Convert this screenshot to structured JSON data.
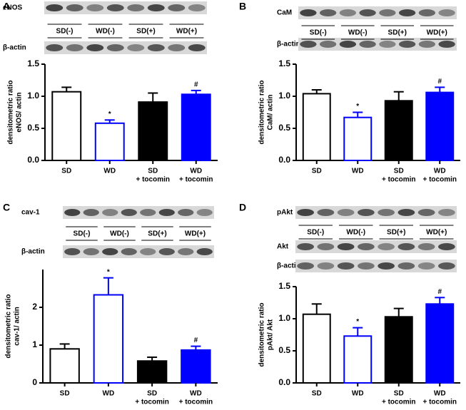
{
  "chart_data": [
    {
      "type": "bar",
      "panel": "A",
      "blot_rows": [
        "eNOS",
        "β-actin"
      ],
      "groups": [
        "SD(-)",
        "WD(-)",
        "SD(+)",
        "WD(+)"
      ],
      "ylabel": [
        "densitometric ratio",
        "eNOS/ actin"
      ],
      "categories": [
        "SD",
        "WD",
        "SD",
        "WD"
      ],
      "subcategories": [
        null,
        null,
        "+ tocomin",
        "+ tocomin"
      ],
      "values": [
        1.07,
        0.58,
        0.91,
        1.03
      ],
      "errors": [
        0.07,
        0.05,
        0.14,
        0.06
      ],
      "annotations": [
        null,
        "*",
        null,
        "#"
      ],
      "fills": [
        "#ffffff",
        "#ffffff",
        "#000000",
        "#0000ff"
      ],
      "edges": [
        "#000000",
        "#0000ff",
        "#000000",
        "#0000ff"
      ],
      "ylim": [
        0,
        1.5
      ],
      "yticks": [
        {
          "value": 0,
          "label": "0.0"
        },
        {
          "value": 0.5,
          "label": "0.5"
        },
        {
          "value": 1,
          "label": "1.0"
        },
        {
          "value": 1.5,
          "label": "1.5"
        }
      ]
    },
    {
      "type": "bar",
      "panel": "B",
      "blot_rows": [
        "CaM",
        "β-actin"
      ],
      "groups": [
        "SD(-)",
        "WD(-)",
        "SD(+)",
        "WD(+)"
      ],
      "ylabel": [
        "densitometric ratio",
        "CaM/ actin"
      ],
      "categories": [
        "SD",
        "WD",
        "SD",
        "WD"
      ],
      "subcategories": [
        null,
        null,
        "+ tocomin",
        "+ tocomin"
      ],
      "values": [
        1.04,
        0.67,
        0.93,
        1.06
      ],
      "errors": [
        0.06,
        0.08,
        0.14,
        0.08
      ],
      "annotations": [
        null,
        "*",
        null,
        "#"
      ],
      "fills": [
        "#ffffff",
        "#ffffff",
        "#000000",
        "#0000ff"
      ],
      "edges": [
        "#000000",
        "#0000ff",
        "#000000",
        "#0000ff"
      ],
      "ylim": [
        0,
        1.5
      ],
      "yticks": [
        {
          "value": 0,
          "label": "0.0"
        },
        {
          "value": 0.5,
          "label": "0.5"
        },
        {
          "value": 1,
          "label": "1.0"
        },
        {
          "value": 1.5,
          "label": "1.5"
        }
      ]
    },
    {
      "type": "bar",
      "panel": "C",
      "blot_rows": [
        "cav-1",
        "β-actin"
      ],
      "groups": [
        "SD(-)",
        "WD(-)",
        "SD(+)",
        "WD(+)"
      ],
      "ylabel": [
        "densitometric ratio",
        "cav-1/ actin"
      ],
      "categories": [
        "SD",
        "WD",
        "SD",
        "WD"
      ],
      "subcategories": [
        null,
        null,
        "+ tocomin",
        "+ tocomin"
      ],
      "values": [
        0.9,
        2.33,
        0.58,
        0.87
      ],
      "errors": [
        0.13,
        0.45,
        0.1,
        0.1
      ],
      "annotations": [
        null,
        "*",
        null,
        "#"
      ],
      "fills": [
        "#ffffff",
        "#ffffff",
        "#000000",
        "#0000ff"
      ],
      "edges": [
        "#000000",
        "#0000ff",
        "#000000",
        "#0000ff"
      ],
      "ylim": [
        0,
        3
      ],
      "yticks": [
        0,
        1,
        2
      ]
    },
    {
      "type": "bar",
      "panel": "D",
      "blot_rows": [
        "pAkt",
        "Akt",
        "β-actin"
      ],
      "groups": [
        "SD(-)",
        "WD(-)",
        "SD(+)",
        "WD(+)"
      ],
      "ylabel": [
        "densitometric ratio",
        "pAkt/ Akt"
      ],
      "categories": [
        "SD",
        "WD",
        "SD",
        "WD"
      ],
      "subcategories": [
        null,
        null,
        "+ tocomin",
        "+ tocomin"
      ],
      "values": [
        1.07,
        0.73,
        1.03,
        1.23
      ],
      "errors": [
        0.16,
        0.13,
        0.13,
        0.1
      ],
      "annotations": [
        null,
        "*",
        null,
        "#"
      ],
      "fills": [
        "#ffffff",
        "#ffffff",
        "#000000",
        "#0000ff"
      ],
      "edges": [
        "#000000",
        "#0000ff",
        "#000000",
        "#0000ff"
      ],
      "ylim": [
        0,
        1.5
      ],
      "yticks": [
        {
          "value": 0,
          "label": "0.0"
        },
        {
          "value": 0.5,
          "label": "0.5"
        },
        {
          "value": 1,
          "label": "1.0"
        },
        {
          "value": 1.5,
          "label": "1.5"
        }
      ]
    }
  ]
}
